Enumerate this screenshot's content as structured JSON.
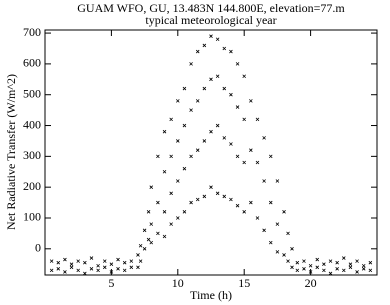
{
  "chart_data": {
    "type": "scatter",
    "title": "GUAM WFO, GU, 13.483N 144.800E, elevation=77.m",
    "subtitle": "typical meteorological year",
    "x_label": "Time (h)",
    "y_label": "Net Radiative Transfer (W/m^2)",
    "color": "#000000",
    "xlim": [
      0,
      25
    ],
    "ylim": [
      -85,
      710
    ],
    "xticks": [
      5,
      10,
      15,
      20
    ],
    "yticks": [
      0,
      100,
      200,
      300,
      400,
      500,
      600,
      700
    ],
    "x": [
      0.5,
      0.5,
      1,
      1,
      1.5,
      1.5,
      2,
      2,
      2.5,
      2.5,
      3,
      3,
      3.5,
      3.5,
      4,
      4,
      4.5,
      4.5,
      5,
      5,
      5.5,
      5.5,
      6,
      6,
      6.5,
      6.5,
      7,
      7,
      7.2,
      7.2,
      7.5,
      7.5,
      7.8,
      7.8,
      8,
      8,
      8,
      8.5,
      8.5,
      8.5,
      9,
      9,
      9,
      9,
      9.5,
      9.5,
      9.5,
      9.5,
      10,
      10,
      10,
      10,
      10.5,
      10.5,
      10.5,
      10.5,
      11,
      11,
      11,
      11,
      11.5,
      11.5,
      11.5,
      11.5,
      12,
      12,
      12,
      12,
      12.5,
      12.5,
      12.5,
      12.5,
      13,
      13,
      13,
      13,
      13.5,
      13.5,
      13.5,
      13.5,
      14,
      14,
      14,
      14,
      14.5,
      14.5,
      14.5,
      14.5,
      15,
      15,
      15,
      15,
      15.5,
      15.5,
      15.5,
      16,
      16,
      16,
      16.5,
      16.5,
      16.5,
      17,
      17,
      17,
      17.5,
      17.5,
      17.5,
      18,
      18,
      18.3,
      18.3,
      18.6,
      18.6,
      19,
      19,
      19.5,
      19.5,
      20,
      20,
      20.5,
      20.5,
      21,
      21,
      21.5,
      21.5,
      22,
      22,
      22.5,
      22.5,
      23,
      23,
      23.5,
      23.5,
      24,
      24,
      24.5,
      24.5
    ],
    "y": [
      -40,
      -70,
      -45,
      -65,
      -35,
      -75,
      -50,
      -60,
      -40,
      -70,
      -45,
      -80,
      -30,
      -65,
      -55,
      -70,
      -40,
      -60,
      -50,
      -75,
      -35,
      -65,
      -45,
      -70,
      -40,
      -60,
      -20,
      -60,
      10,
      -40,
      60,
      0,
      120,
      30,
      200,
      80,
      20,
      300,
      150,
      50,
      380,
      250,
      120,
      40,
      420,
      300,
      180,
      80,
      480,
      350,
      220,
      100,
      520,
      400,
      260,
      120,
      600,
      450,
      300,
      150,
      640,
      480,
      320,
      160,
      660,
      520,
      350,
      170,
      690,
      550,
      380,
      200,
      680,
      560,
      400,
      180,
      650,
      520,
      360,
      170,
      640,
      500,
      340,
      160,
      600,
      460,
      300,
      140,
      560,
      420,
      280,
      120,
      480,
      320,
      150,
      420,
      280,
      100,
      360,
      220,
      60,
      300,
      150,
      20,
      220,
      80,
      -10,
      120,
      -20,
      50,
      -40,
      0,
      -60,
      -45,
      -70,
      -40,
      -65,
      -55,
      -75,
      -35,
      -60,
      -50,
      -70,
      -40,
      -80,
      -45,
      -65,
      -30,
      -70,
      -50,
      -60,
      -40,
      -75,
      -55,
      -65,
      -45,
      -70
    ]
  }
}
